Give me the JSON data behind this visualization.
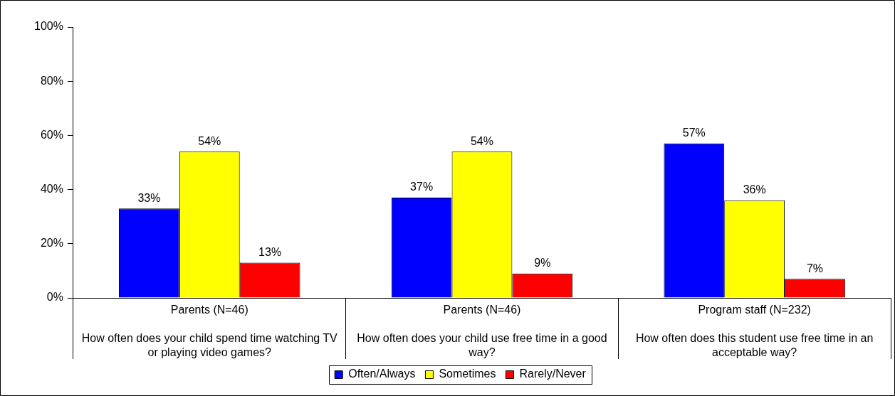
{
  "chart_data": {
    "type": "bar",
    "categories": [
      "Parents (N=46)\nHow often does your child spend time watching TV or playing video games?",
      "Parents (N=46)\nHow often does your child use free time in a good way?",
      "Program staff (N=232)\nHow often does this student use free time in an acceptable way?"
    ],
    "series": [
      {
        "name": "Often/Always",
        "color": "#0000ff",
        "values": [
          33,
          37,
          57
        ]
      },
      {
        "name": "Sometimes",
        "color": "#ffff00",
        "values": [
          54,
          54,
          36
        ]
      },
      {
        "name": "Rarely/Never",
        "color": "#ff0000",
        "values": [
          13,
          9,
          7
        ]
      }
    ],
    "value_labels": [
      [
        "33%",
        "37%",
        "57%"
      ],
      [
        "54%",
        "54%",
        "36%"
      ],
      [
        "13%",
        "9%",
        "7%"
      ]
    ],
    "ylim": [
      0,
      100
    ],
    "yticks": [
      {
        "value": 0,
        "label": "0%"
      },
      {
        "value": 20,
        "label": "20%"
      },
      {
        "value": 40,
        "label": "40%"
      },
      {
        "value": 60,
        "label": "60%"
      },
      {
        "value": 80,
        "label": "80%"
      },
      {
        "value": 100,
        "label": "100%"
      }
    ],
    "grid": false,
    "legend": "bottom"
  }
}
